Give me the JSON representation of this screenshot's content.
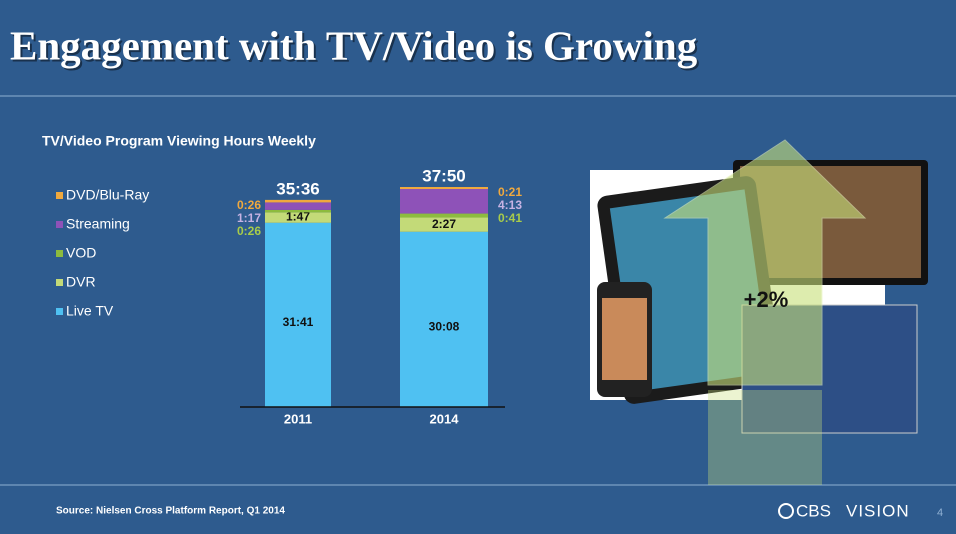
{
  "title": "Engagement with TV/Video is Growing",
  "source": "Source: Nielsen Cross Platform Report, Q1 2014",
  "page_number": "4",
  "growth_label": "+2%",
  "logo": {
    "brand": "CBS",
    "name": "VISION"
  },
  "chart_data": {
    "type": "stacked_bar",
    "title": "TV/Video Program Viewing Hours Weekly",
    "categories": [
      "2011",
      "2014"
    ],
    "series": [
      {
        "name": "Live TV",
        "color": "#4fc1f2",
        "values": [
          1901,
          1808
        ],
        "value_labels": [
          "31:41",
          "30:08"
        ]
      },
      {
        "name": "DVR",
        "color": "#c3da78",
        "values": [
          107,
          147
        ],
        "value_labels": [
          "1:47",
          "2:27"
        ]
      },
      {
        "name": "VOD",
        "color": "#8dbb3e",
        "values": [
          26,
          41
        ],
        "value_labels": [
          "0:26",
          "0:41"
        ]
      },
      {
        "name": "Streaming",
        "color": "#8e52b8",
        "values": [
          77,
          253
        ],
        "value_labels": [
          "1:17",
          "4:13"
        ]
      },
      {
        "name": "DVD/Blu-Ray",
        "color": "#f0a93e",
        "values": [
          26,
          21
        ],
        "value_labels": [
          "0:26",
          "0:21"
        ]
      }
    ],
    "totals": [
      2136,
      2270
    ],
    "total_labels": [
      "35:36",
      "37:50"
    ]
  }
}
